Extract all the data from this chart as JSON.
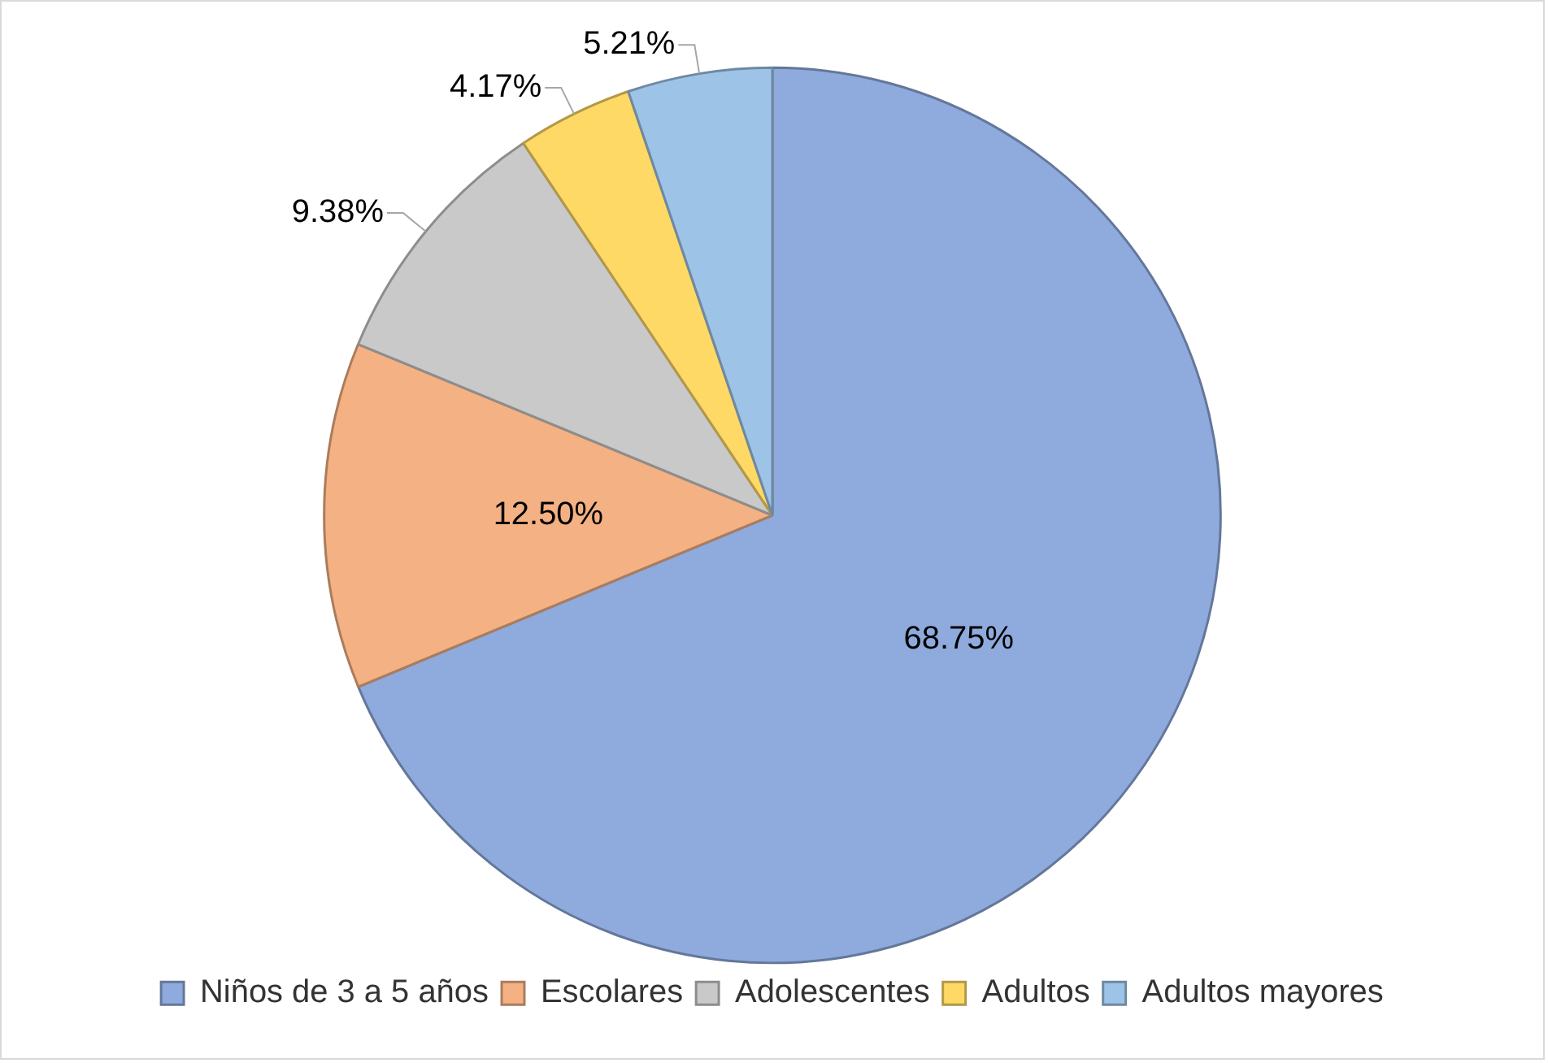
{
  "chart_data": {
    "type": "pie",
    "categories": [
      "Niños de 3 a 5 años",
      "Escolares",
      "Adolescentes",
      "Adultos",
      "Adultos mayores"
    ],
    "values": [
      68.75,
      12.5,
      9.38,
      4.17,
      5.21
    ],
    "colors": [
      "#8faadc",
      "#f4b183",
      "#c9c9c9",
      "#ffd966",
      "#9dc3e6"
    ],
    "value_labels": [
      "68.75%",
      "12.50%",
      "9.38%",
      "4.17%",
      "5.21%"
    ],
    "legend": "bottom"
  }
}
